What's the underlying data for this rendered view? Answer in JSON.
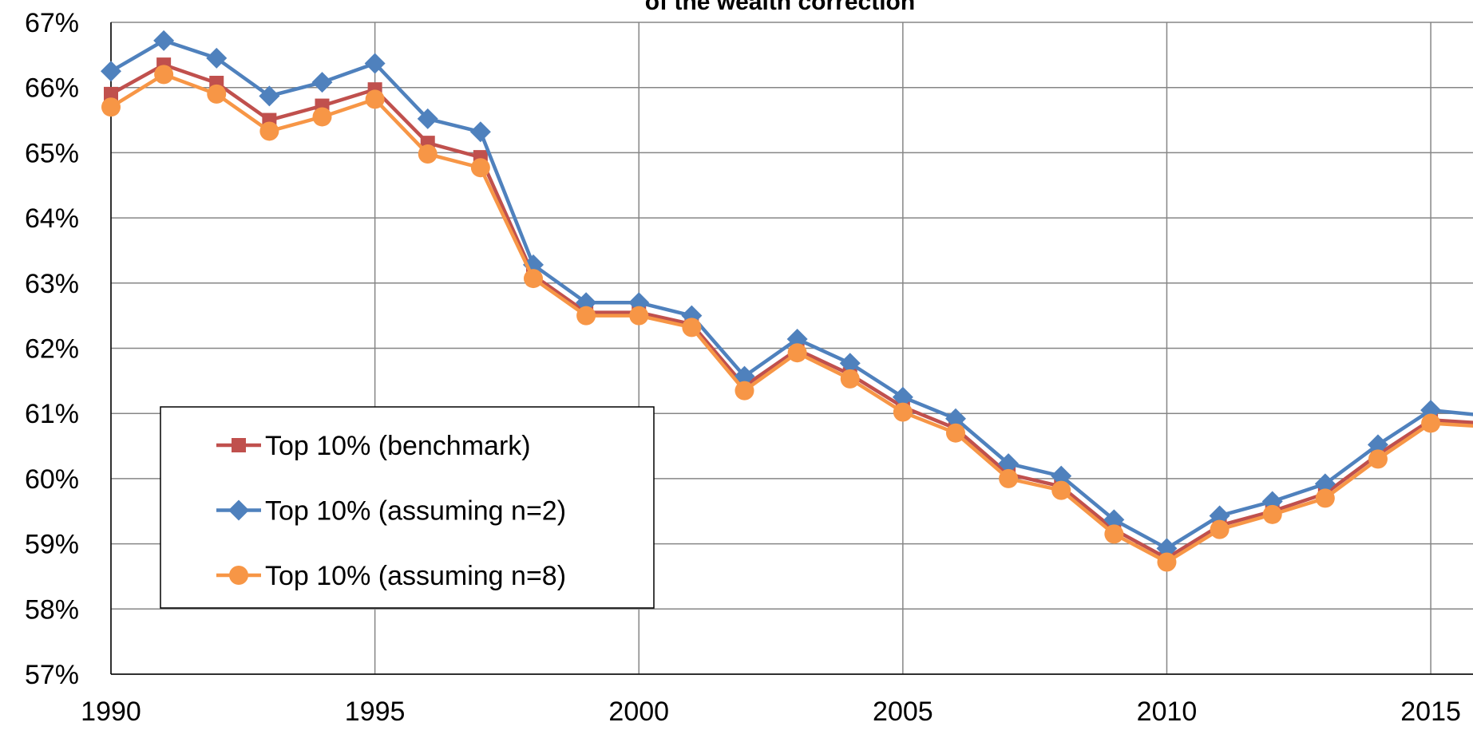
{
  "chart_data": {
    "type": "line",
    "title": "of the wealth correction",
    "x": [
      1990,
      1991,
      1992,
      1993,
      1994,
      1995,
      1996,
      1997,
      1998,
      1999,
      2000,
      2001,
      2002,
      2003,
      2004,
      2005,
      2006,
      2007,
      2008,
      2009,
      2010,
      2011,
      2012,
      2013,
      2014,
      2015,
      2016
    ],
    "series": [
      {
        "name": "Top 10% (benchmark)",
        "color": "#c0504d",
        "marker": "square",
        "values": [
          65.9,
          66.35,
          66.07,
          65.5,
          65.72,
          65.97,
          65.15,
          64.93,
          63.12,
          62.55,
          62.55,
          62.37,
          61.42,
          61.98,
          61.6,
          61.1,
          60.77,
          60.07,
          59.88,
          59.22,
          58.78,
          59.28,
          59.5,
          59.77,
          60.37,
          60.9,
          60.85
        ]
      },
      {
        "name": "Top 10% (assuming n=2)",
        "color": "#4f81bd",
        "marker": "diamond",
        "values": [
          66.25,
          66.72,
          66.45,
          65.87,
          66.08,
          66.37,
          65.52,
          65.32,
          63.28,
          62.7,
          62.7,
          62.5,
          61.57,
          62.14,
          61.77,
          61.25,
          60.92,
          60.23,
          60.04,
          59.37,
          58.93,
          59.43,
          59.65,
          59.92,
          60.52,
          61.05,
          60.97
        ]
      },
      {
        "name": "Top 10% (assuming n=8)",
        "color": "#f79646",
        "marker": "circle",
        "values": [
          65.7,
          66.2,
          65.9,
          65.33,
          65.55,
          65.82,
          64.98,
          64.77,
          63.07,
          62.5,
          62.5,
          62.32,
          61.35,
          61.93,
          61.53,
          61.02,
          60.7,
          60.0,
          59.82,
          59.15,
          58.72,
          59.22,
          59.45,
          59.7,
          60.3,
          60.85,
          60.8
        ]
      }
    ],
    "xlim": [
      1990,
      2015.8
    ],
    "xticks": [
      1990,
      1995,
      2000,
      2005,
      2010,
      2015
    ],
    "ylim": [
      57,
      67
    ],
    "yticks": [
      {
        "value": 57,
        "label": "57%"
      },
      {
        "value": 58,
        "label": "58%"
      },
      {
        "value": 59,
        "label": "59%"
      },
      {
        "value": 60,
        "label": "60%"
      },
      {
        "value": 61,
        "label": "61%"
      },
      {
        "value": 62,
        "label": "62%"
      },
      {
        "value": 63,
        "label": "63%"
      },
      {
        "value": 64,
        "label": "64%"
      },
      {
        "value": 65,
        "label": "65%"
      },
      {
        "value": 66,
        "label": "66%"
      },
      {
        "value": 67,
        "label": "67%"
      }
    ],
    "grid": true,
    "legend": "lower left"
  }
}
